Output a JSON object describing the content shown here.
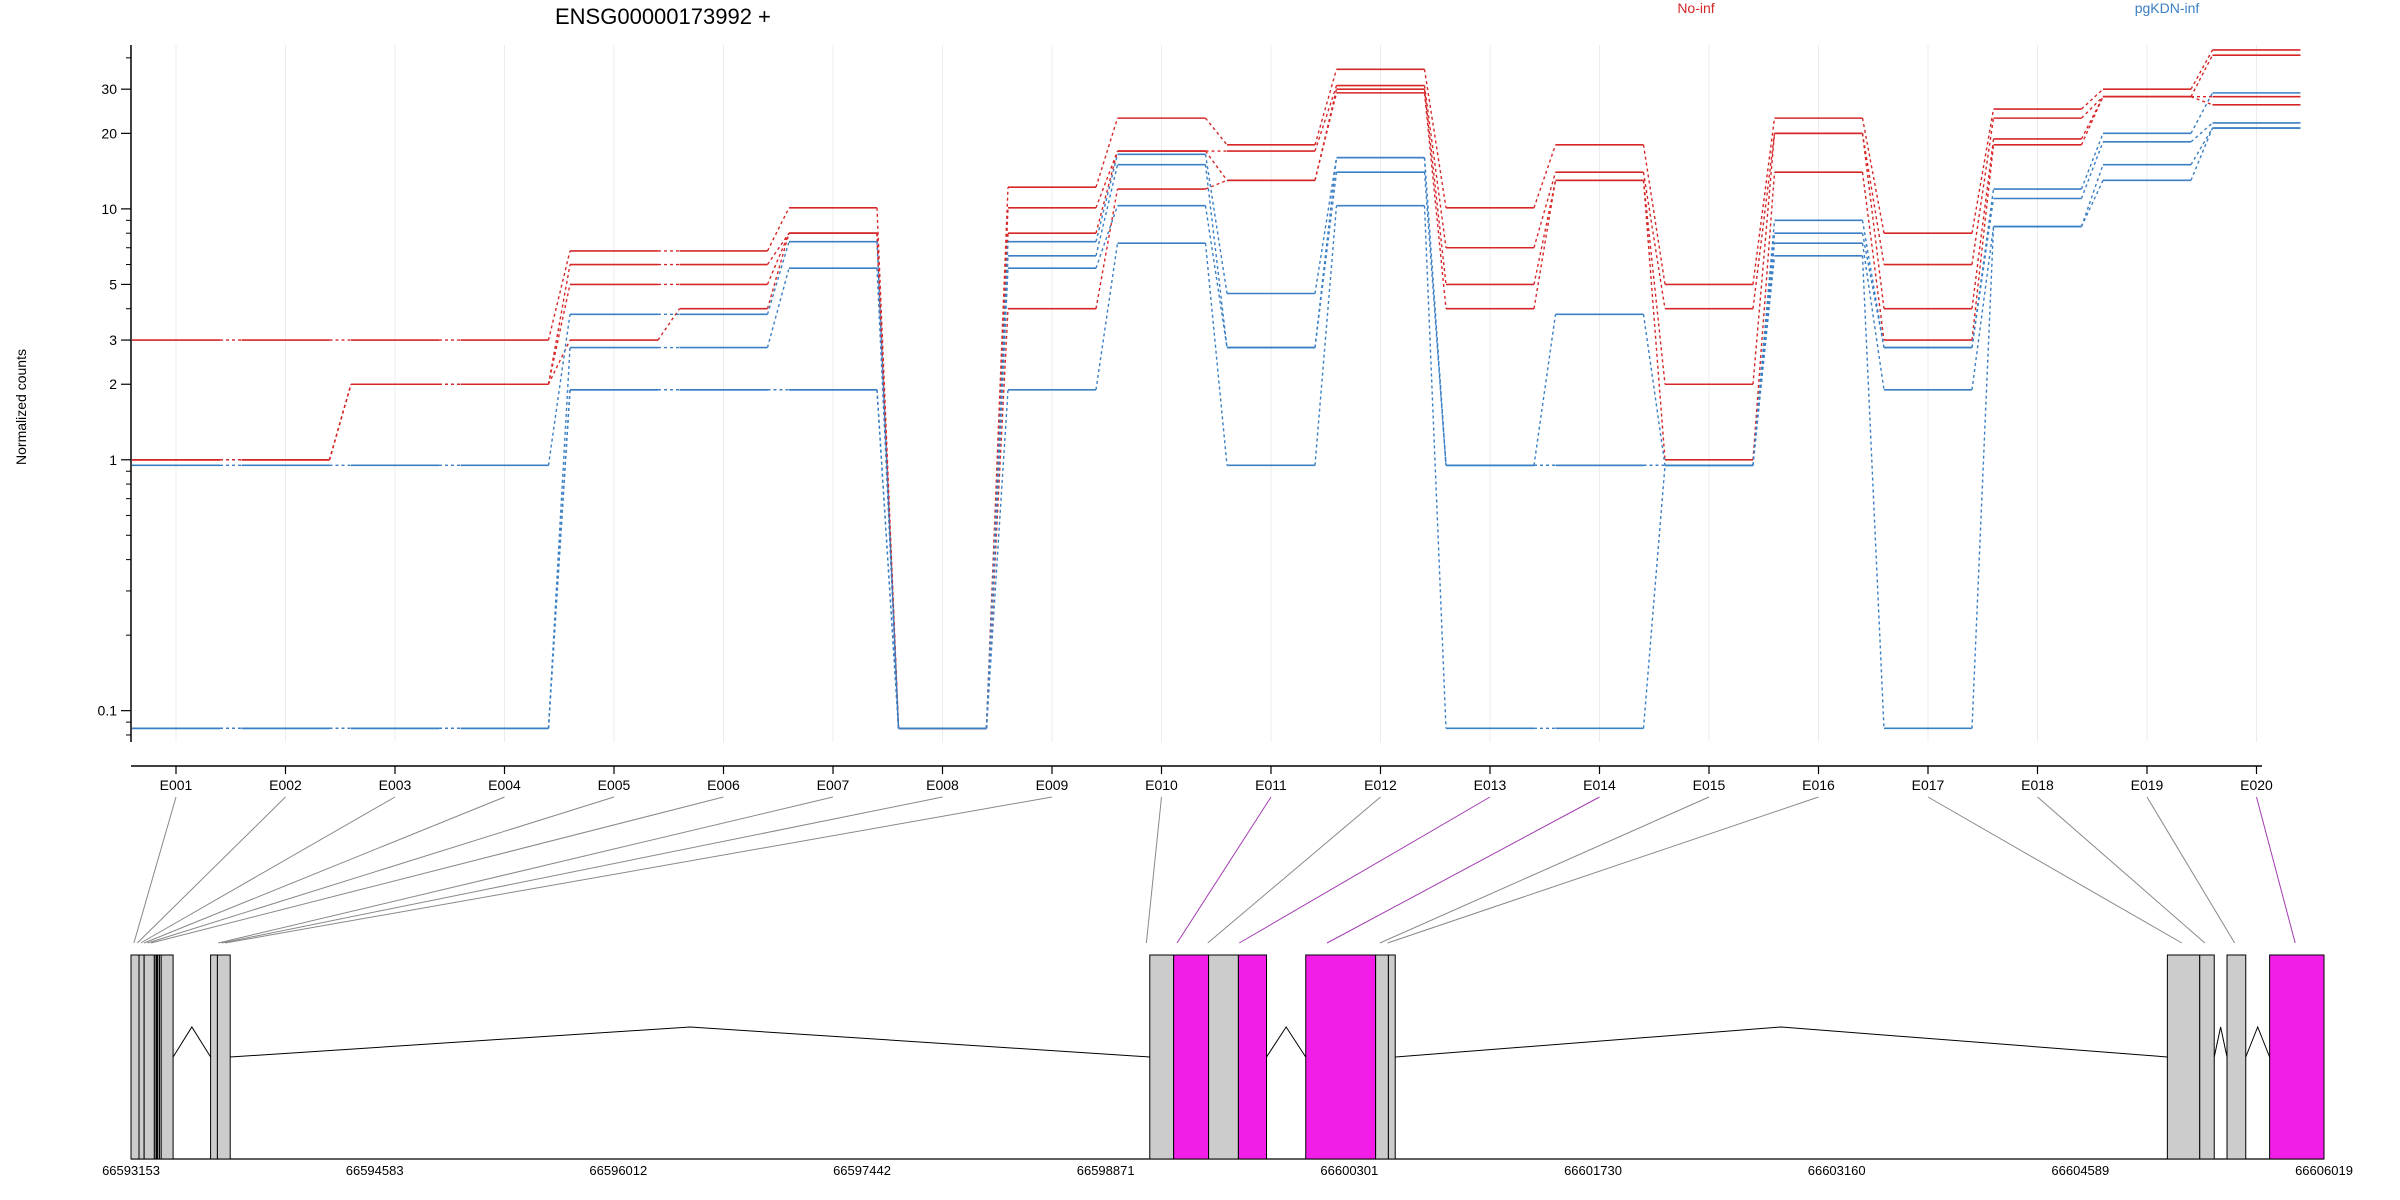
{
  "chart_data": {
    "type": "line",
    "title": "ENSG00000173992 +",
    "ylabel": "Normalized counts",
    "y_scale": "log",
    "yticks": [
      "0.1",
      "1",
      "2",
      "3",
      "5",
      "10",
      "20",
      "30"
    ],
    "ylim": [
      0.075,
      45
    ],
    "legend": {
      "placement": "top",
      "entries": [
        {
          "label": "No-inf",
          "color": "#d62728"
        },
        {
          "label": "pgKDN-inf",
          "color": "#3b7fc4"
        }
      ]
    },
    "categories": [
      "E001",
      "E002",
      "E003",
      "E004",
      "E005",
      "E006",
      "E007",
      "E008",
      "E009",
      "E010",
      "E011",
      "E012",
      "E013",
      "E014",
      "E015",
      "E016",
      "E017",
      "E018",
      "E019",
      "E020"
    ],
    "zero_value": 0.085,
    "series": [
      {
        "group": "No-inf",
        "color": "#d62728",
        "values": [
          3,
          3,
          3,
          3,
          6.8,
          6.8,
          10.1,
          0.085,
          12.2,
          23,
          18,
          36,
          10.1,
          18,
          5,
          23,
          8,
          25,
          30,
          43
        ]
      },
      {
        "group": "No-inf",
        "color": "#d62728",
        "values": [
          1,
          1,
          2,
          2,
          6,
          6,
          8,
          0.085,
          10.1,
          17,
          17,
          31,
          7,
          14,
          4,
          20,
          6,
          23,
          28,
          41
        ]
      },
      {
        "group": "No-inf",
        "color": "#d62728",
        "values": [
          1,
          1,
          2,
          2,
          5,
          5,
          8,
          0.085,
          8,
          17,
          13,
          30,
          5,
          13,
          2,
          20,
          4,
          19,
          28,
          28
        ]
      },
      {
        "group": "No-inf",
        "color": "#d62728",
        "values": [
          1,
          1,
          2,
          2,
          3,
          4,
          8,
          0.085,
          4,
          12,
          13,
          29,
          4,
          13,
          1,
          14,
          3,
          18,
          28,
          26
        ]
      },
      {
        "group": "pgKDN-inf",
        "color": "#3b7fc4",
        "values": [
          0.95,
          0.95,
          0.95,
          0.95,
          3.8,
          3.8,
          7.4,
          0.085,
          7.4,
          16.5,
          4.6,
          16,
          0.95,
          3.8,
          0.95,
          9,
          2.8,
          12,
          20,
          29
        ]
      },
      {
        "group": "pgKDN-inf",
        "color": "#3b7fc4",
        "values": [
          0.085,
          0.085,
          0.085,
          0.085,
          2.8,
          2.8,
          5.8,
          0.085,
          6.5,
          15,
          2.8,
          16,
          0.95,
          0.95,
          0.95,
          8,
          2.8,
          11,
          18.5,
          22
        ]
      },
      {
        "group": "pgKDN-inf",
        "color": "#3b7fc4",
        "values": [
          0.085,
          0.085,
          0.085,
          0.085,
          1.9,
          1.9,
          1.9,
          0.085,
          5.8,
          10.3,
          2.8,
          14,
          0.95,
          0.95,
          0.95,
          7.3,
          1.9,
          8.5,
          15,
          21
        ]
      },
      {
        "group": "pgKDN-inf",
        "color": "#3b7fc4",
        "values": [
          0.085,
          0.085,
          0.085,
          0.085,
          1.9,
          1.9,
          1.9,
          0.085,
          1.9,
          7.3,
          0.95,
          10.3,
          0.085,
          0.085,
          0.95,
          6.5,
          0.085,
          8.5,
          13,
          21
        ]
      }
    ],
    "gene_model": {
      "genomic_ticks": [
        "66593153",
        "66594583",
        "66596012",
        "66597442",
        "66598871",
        "66600301",
        "66601730",
        "66603160",
        "66604589",
        "66606019"
      ],
      "range": [
        66593153,
        66606019
      ],
      "exons": [
        {
          "start": 66593153,
          "end": 66593200,
          "highlighted": false
        },
        {
          "start": 66593200,
          "end": 66593230,
          "highlighted": false
        },
        {
          "start": 66593230,
          "end": 66593290,
          "highlighted": false
        },
        {
          "start": 66593290,
          "end": 66593300,
          "highlighted": false
        },
        {
          "start": 66593300,
          "end": 66593305,
          "highlighted": false
        },
        {
          "start": 66593305,
          "end": 66593310,
          "highlighted": false
        },
        {
          "start": 66593310,
          "end": 66593320,
          "highlighted": false
        },
        {
          "start": 66593320,
          "end": 66593330,
          "highlighted": false
        },
        {
          "start": 66593330,
          "end": 66593400,
          "highlighted": false
        },
        {
          "start": 66593620,
          "end": 66593660,
          "highlighted": false
        },
        {
          "start": 66593660,
          "end": 66593735,
          "highlighted": false
        },
        {
          "start": 66599130,
          "end": 66599270,
          "highlighted": false
        },
        {
          "start": 66599270,
          "end": 66599475,
          "highlighted": true
        },
        {
          "start": 66599475,
          "end": 66599650,
          "highlighted": false
        },
        {
          "start": 66599650,
          "end": 66599815,
          "highlighted": true
        },
        {
          "start": 66600045,
          "end": 66600455,
          "highlighted": true
        },
        {
          "start": 66600455,
          "end": 66600530,
          "highlighted": false
        },
        {
          "start": 66600530,
          "end": 66600570,
          "highlighted": false
        },
        {
          "start": 66605100,
          "end": 66605290,
          "highlighted": false
        },
        {
          "start": 66605290,
          "end": 66605375,
          "highlighted": false
        },
        {
          "start": 66605450,
          "end": 66605560,
          "highlighted": false
        },
        {
          "start": 66605700,
          "end": 66606019,
          "highlighted": true
        }
      ],
      "exon_links": [
        {
          "exon": "E001",
          "pos": 66593170,
          "highlighted": false
        },
        {
          "exon": "E002",
          "pos": 66593190,
          "highlighted": false
        },
        {
          "exon": "E003",
          "pos": 66593210,
          "highlighted": false
        },
        {
          "exon": "E004",
          "pos": 66593230,
          "highlighted": false
        },
        {
          "exon": "E005",
          "pos": 66593250,
          "highlighted": false
        },
        {
          "exon": "E006",
          "pos": 66593270,
          "highlighted": false
        },
        {
          "exon": "E007",
          "pos": 66593665,
          "highlighted": false
        },
        {
          "exon": "E008",
          "pos": 66593685,
          "highlighted": false
        },
        {
          "exon": "E009",
          "pos": 66593705,
          "highlighted": false
        },
        {
          "exon": "E010",
          "pos": 66599110,
          "highlighted": false
        },
        {
          "exon": "E011",
          "pos": 66599290,
          "highlighted": true
        },
        {
          "exon": "E012",
          "pos": 66599470,
          "highlighted": false
        },
        {
          "exon": "E013",
          "pos": 66599655,
          "highlighted": true
        },
        {
          "exon": "E014",
          "pos": 66600170,
          "highlighted": true
        },
        {
          "exon": "E015",
          "pos": 66600480,
          "highlighted": false
        },
        {
          "exon": "E016",
          "pos": 66600525,
          "highlighted": false
        },
        {
          "exon": "E017",
          "pos": 66605185,
          "highlighted": false
        },
        {
          "exon": "E018",
          "pos": 66605320,
          "highlighted": false
        },
        {
          "exon": "E019",
          "pos": 66605495,
          "highlighted": false
        },
        {
          "exon": "E020",
          "pos": 66605850,
          "highlighted": true
        }
      ]
    }
  }
}
